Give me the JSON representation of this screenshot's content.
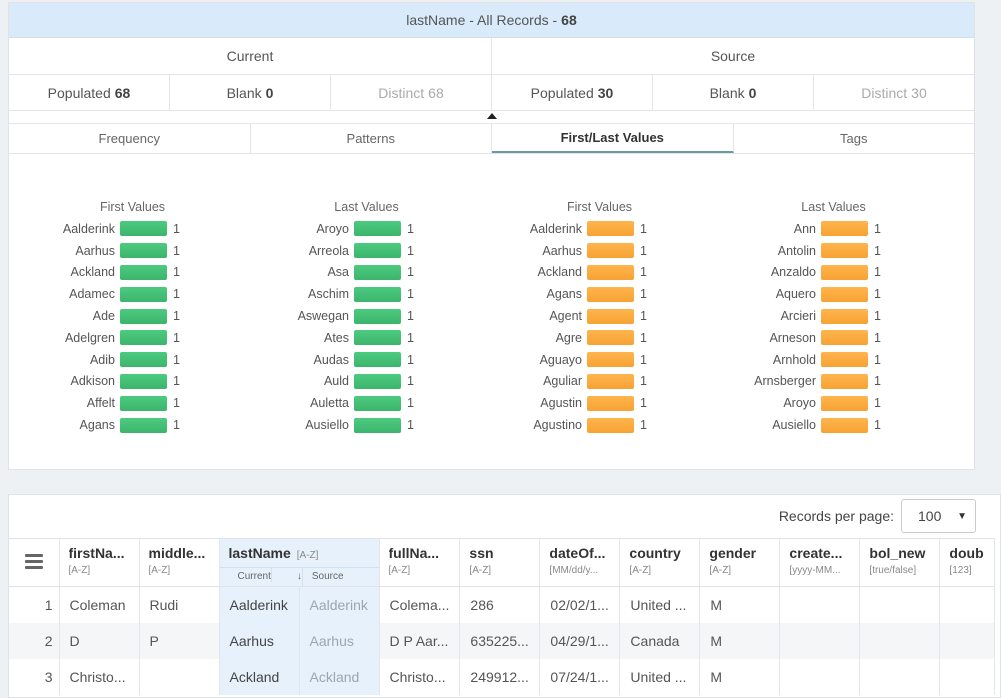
{
  "header": {
    "title": "lastName - All Records -",
    "count": "68"
  },
  "sections": {
    "current": "Current",
    "source": "Source"
  },
  "stats": [
    {
      "label": "Populated",
      "value": "68",
      "dim": false
    },
    {
      "label": "Blank",
      "value": "0",
      "dim": false
    },
    {
      "label": "Distinct",
      "value": "68",
      "dim": true
    },
    {
      "label": "Populated",
      "value": "30",
      "dim": false
    },
    {
      "label": "Blank",
      "value": "0",
      "dim": false
    },
    {
      "label": "Distinct",
      "value": "30",
      "dim": true
    }
  ],
  "tabs": [
    "Frequency",
    "Patterns",
    "First/Last Values",
    "Tags"
  ],
  "active_tab": "First/Last Values",
  "columns": [
    {
      "title": "First Values",
      "color": "#3cb56c",
      "items": [
        "Aalderink",
        "Aarhus",
        "Ackland",
        "Adamec",
        "Ade",
        "Adelgren",
        "Adib",
        "Adkison",
        "Affelt",
        "Agans"
      ],
      "counts": [
        "1",
        "1",
        "1",
        "1",
        "1",
        "1",
        "1",
        "1",
        "1",
        "1"
      ]
    },
    {
      "title": "Last Values",
      "color": "#3cb56c",
      "items": [
        "Aroyo",
        "Arreola",
        "Asa",
        "Aschim",
        "Aswegan",
        "Ates",
        "Audas",
        "Auld",
        "Auletta",
        "Ausiello"
      ],
      "counts": [
        "1",
        "1",
        "1",
        "1",
        "1",
        "1",
        "1",
        "1",
        "1",
        "1"
      ]
    },
    {
      "title": "First Values",
      "color": "#f7a233",
      "items": [
        "Aalderink",
        "Aarhus",
        "Ackland",
        "Agans",
        "Agent",
        "Agre",
        "Aguayo",
        "Aguliar",
        "Agustin",
        "Agustino"
      ],
      "counts": [
        "1",
        "1",
        "1",
        "1",
        "1",
        "1",
        "1",
        "1",
        "1",
        "1"
      ]
    },
    {
      "title": "Last Values",
      "color": "#f7a233",
      "items": [
        "Ann",
        "Antolin",
        "Anzaldo",
        "Aquero",
        "Arcieri",
        "Arneson",
        "Arnhold",
        "Arnsberger",
        "Aroyo",
        "Ausiello"
      ],
      "counts": [
        "1",
        "1",
        "1",
        "1",
        "1",
        "1",
        "1",
        "1",
        "1",
        "1"
      ]
    }
  ],
  "grid": {
    "records_per_page_label": "Records per page:",
    "records_per_page": "100",
    "headers": [
      {
        "name": "firstNa...",
        "type": "[A-Z]"
      },
      {
        "name": "middle...",
        "type": "[A-Z]"
      },
      {
        "name": "lastName",
        "type": "[A-Z]",
        "sub_current": "Current",
        "sub_source": "Source"
      },
      {
        "name": "fullNa...",
        "type": "[A-Z]"
      },
      {
        "name": "ssn",
        "type": "[A-Z]"
      },
      {
        "name": "dateOf...",
        "type": "[MM/dd/y..."
      },
      {
        "name": "country",
        "type": "[A-Z]"
      },
      {
        "name": "gender",
        "type": "[A-Z]"
      },
      {
        "name": "create...",
        "type": "[yyyy-MM..."
      },
      {
        "name": "bol_new",
        "type": "[true/false]"
      },
      {
        "name": "doub",
        "type": "[123]"
      }
    ],
    "rows": [
      {
        "idx": "1",
        "cells": [
          "Coleman",
          "Rudi",
          "Aalderink",
          "Aalderink",
          "Colema...",
          "286",
          "02/02/1...",
          "United ...",
          "M",
          "",
          "",
          ""
        ]
      },
      {
        "idx": "2",
        "cells": [
          "D",
          "P",
          "Aarhus",
          "Aarhus",
          "D P Aar...",
          "635225...",
          "04/29/1...",
          "Canada",
          "M",
          "",
          "",
          ""
        ]
      },
      {
        "idx": "3",
        "cells": [
          "Christo...",
          "",
          "Ackland",
          "Ackland",
          "Christo...",
          "249912...",
          "07/24/1...",
          "United ...",
          "M",
          "",
          "",
          ""
        ]
      }
    ]
  }
}
